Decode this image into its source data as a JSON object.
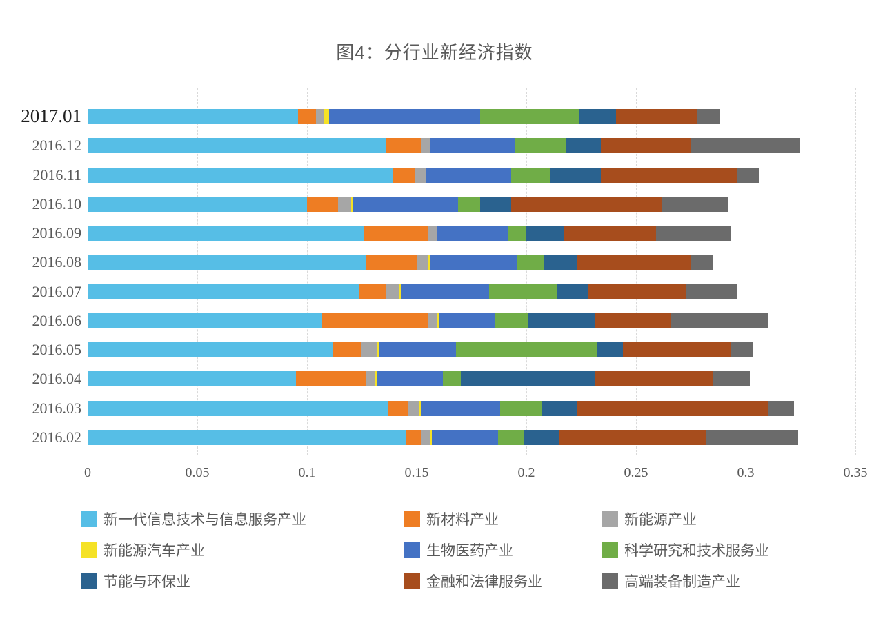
{
  "title": "图4：分行业新经济指数",
  "chart_data": {
    "type": "bar",
    "orientation": "horizontal",
    "stacked": true,
    "title": "图4：分行业新经济指数",
    "categories": [
      "2017.01",
      "2016.12",
      "2016.11",
      "2016.10",
      "2016.09",
      "2016.08",
      "2016.07",
      "2016.06",
      "2016.05",
      "2016.04",
      "2016.03",
      "2016.02"
    ],
    "series": [
      {
        "name": "新一代信息技术与信息服务产业",
        "color": "#56BEE6",
        "values": [
          0.096,
          0.136,
          0.139,
          0.1,
          0.126,
          0.127,
          0.124,
          0.107,
          0.112,
          0.095,
          0.137,
          0.145
        ]
      },
      {
        "name": "新材料产业",
        "color": "#EE7D23",
        "values": [
          0.008,
          0.016,
          0.01,
          0.014,
          0.029,
          0.023,
          0.012,
          0.048,
          0.013,
          0.032,
          0.009,
          0.007
        ]
      },
      {
        "name": "新能源产业",
        "color": "#A6A6A6",
        "values": [
          0.004,
          0.004,
          0.005,
          0.006,
          0.004,
          0.005,
          0.006,
          0.004,
          0.007,
          0.004,
          0.005,
          0.004
        ]
      },
      {
        "name": "新能源汽车产业",
        "color": "#F5E226",
        "values": [
          0.002,
          0.0,
          0.0,
          0.001,
          0.0,
          0.001,
          0.001,
          0.001,
          0.001,
          0.001,
          0.001,
          0.001
        ]
      },
      {
        "name": "生物医药产业",
        "color": "#4472C4",
        "values": [
          0.069,
          0.039,
          0.039,
          0.048,
          0.033,
          0.04,
          0.04,
          0.026,
          0.035,
          0.03,
          0.036,
          0.03
        ]
      },
      {
        "name": "科学研究和技术服务业",
        "color": "#70AD47",
        "values": [
          0.045,
          0.023,
          0.018,
          0.01,
          0.008,
          0.012,
          0.031,
          0.015,
          0.064,
          0.008,
          0.019,
          0.012
        ]
      },
      {
        "name": "节能与环保业",
        "color": "#2A628F",
        "values": [
          0.017,
          0.016,
          0.023,
          0.014,
          0.017,
          0.015,
          0.014,
          0.03,
          0.012,
          0.061,
          0.016,
          0.016
        ]
      },
      {
        "name": "金融和法律服务业",
        "color": "#A74D1D",
        "values": [
          0.037,
          0.041,
          0.062,
          0.069,
          0.042,
          0.052,
          0.045,
          0.035,
          0.049,
          0.054,
          0.087,
          0.067
        ]
      },
      {
        "name": "高端装备制造产业",
        "color": "#6B6B6B",
        "values": [
          0.01,
          0.05,
          0.01,
          0.03,
          0.034,
          0.01,
          0.023,
          0.044,
          0.01,
          0.017,
          0.012,
          0.042
        ]
      }
    ],
    "xlim": [
      0,
      0.35
    ],
    "xticks": [
      0,
      0.05,
      0.1,
      0.15,
      0.2,
      0.25,
      0.3,
      0.35
    ],
    "xtick_labels": [
      "0",
      "0.05",
      "0.1",
      "0.15",
      "0.2",
      "0.25",
      "0.3",
      "0.35"
    ],
    "grid": "vertical-dashed",
    "legend_position": "bottom"
  }
}
